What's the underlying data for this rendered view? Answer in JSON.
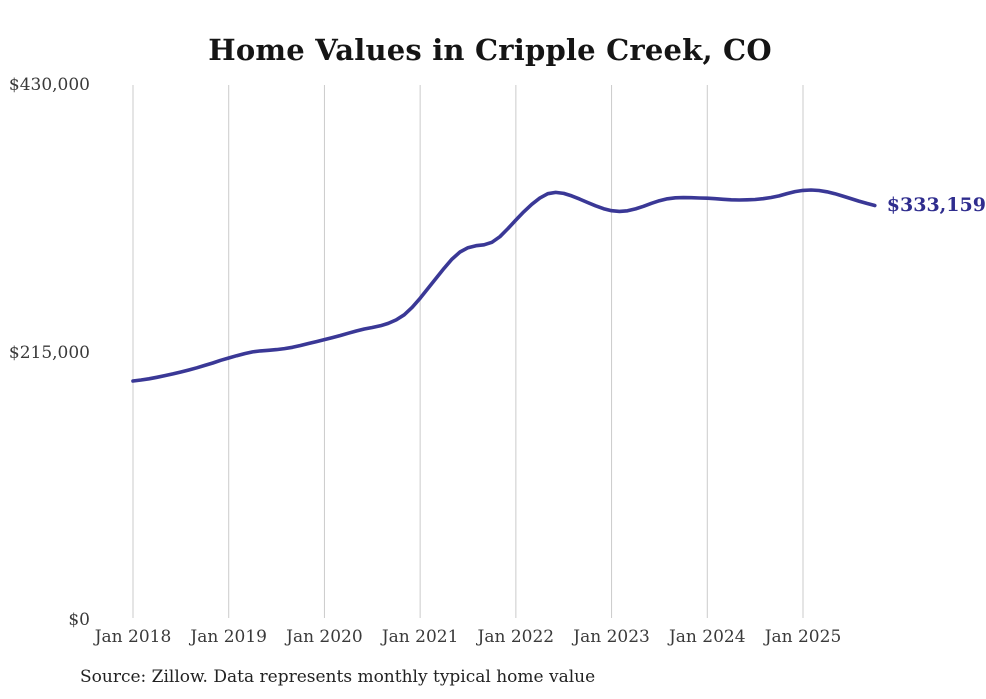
{
  "chart_data": {
    "type": "line",
    "title": "Home Values in Cripple Creek, CO",
    "source_note": "Source: Zillow. Data represents monthly typical home value",
    "xlabel": "",
    "ylabel": "",
    "ylim": [
      0,
      430000
    ],
    "grid": "vertical-year-gridlines",
    "legend": "none",
    "frequency": "monthly",
    "x_start_month": "2018-01",
    "x_end_month": "2025-10",
    "x_tick_labels": [
      "Jan 2018",
      "Jan 2019",
      "Jan 2020",
      "Jan 2021",
      "Jan 2022",
      "Jan 2023",
      "Jan 2024",
      "Jan 2025"
    ],
    "y_ticks": [
      {
        "label": "$430,000",
        "value": 430000
      },
      {
        "label": "$215,000",
        "value": 215000
      },
      {
        "label": "$0",
        "value": 0
      }
    ],
    "end_label": "$333,159",
    "final_value": 333159,
    "colors": {
      "line": "#3a3896",
      "end_label": "#2f2d8e",
      "grid": "#cbcbcb",
      "axis_text": "#3a3a3a",
      "title_text": "#151515",
      "source_text": "#222222",
      "background": "#ffffff"
    },
    "series": [
      {
        "name": "Typical home value",
        "values": [
          192100,
          192900,
          193900,
          195100,
          196400,
          197800,
          199300,
          200900,
          202700,
          204600,
          206600,
          208700,
          210600,
          212400,
          214100,
          215500,
          216300,
          216800,
          217300,
          218100,
          219200,
          220600,
          222200,
          223800,
          225400,
          227000,
          228700,
          230500,
          232300,
          233900,
          235100,
          236500,
          238400,
          241200,
          245300,
          251300,
          258600,
          266600,
          274700,
          282700,
          290100,
          295800,
          299200,
          300800,
          301600,
          303600,
          308100,
          314600,
          321500,
          328100,
          334100,
          339100,
          342600,
          343700,
          342900,
          340900,
          338300,
          335600,
          332900,
          330600,
          329000,
          328400,
          328900,
          330400,
          332500,
          334900,
          337000,
          338500,
          339300,
          339500,
          339400,
          339200,
          339000,
          338600,
          338100,
          337700,
          337600,
          337700,
          338000,
          338600,
          339600,
          340900,
          342700,
          344300,
          345300,
          345600,
          345200,
          344200,
          342600,
          340700,
          338700,
          336700,
          334800,
          333159
        ]
      }
    ]
  }
}
